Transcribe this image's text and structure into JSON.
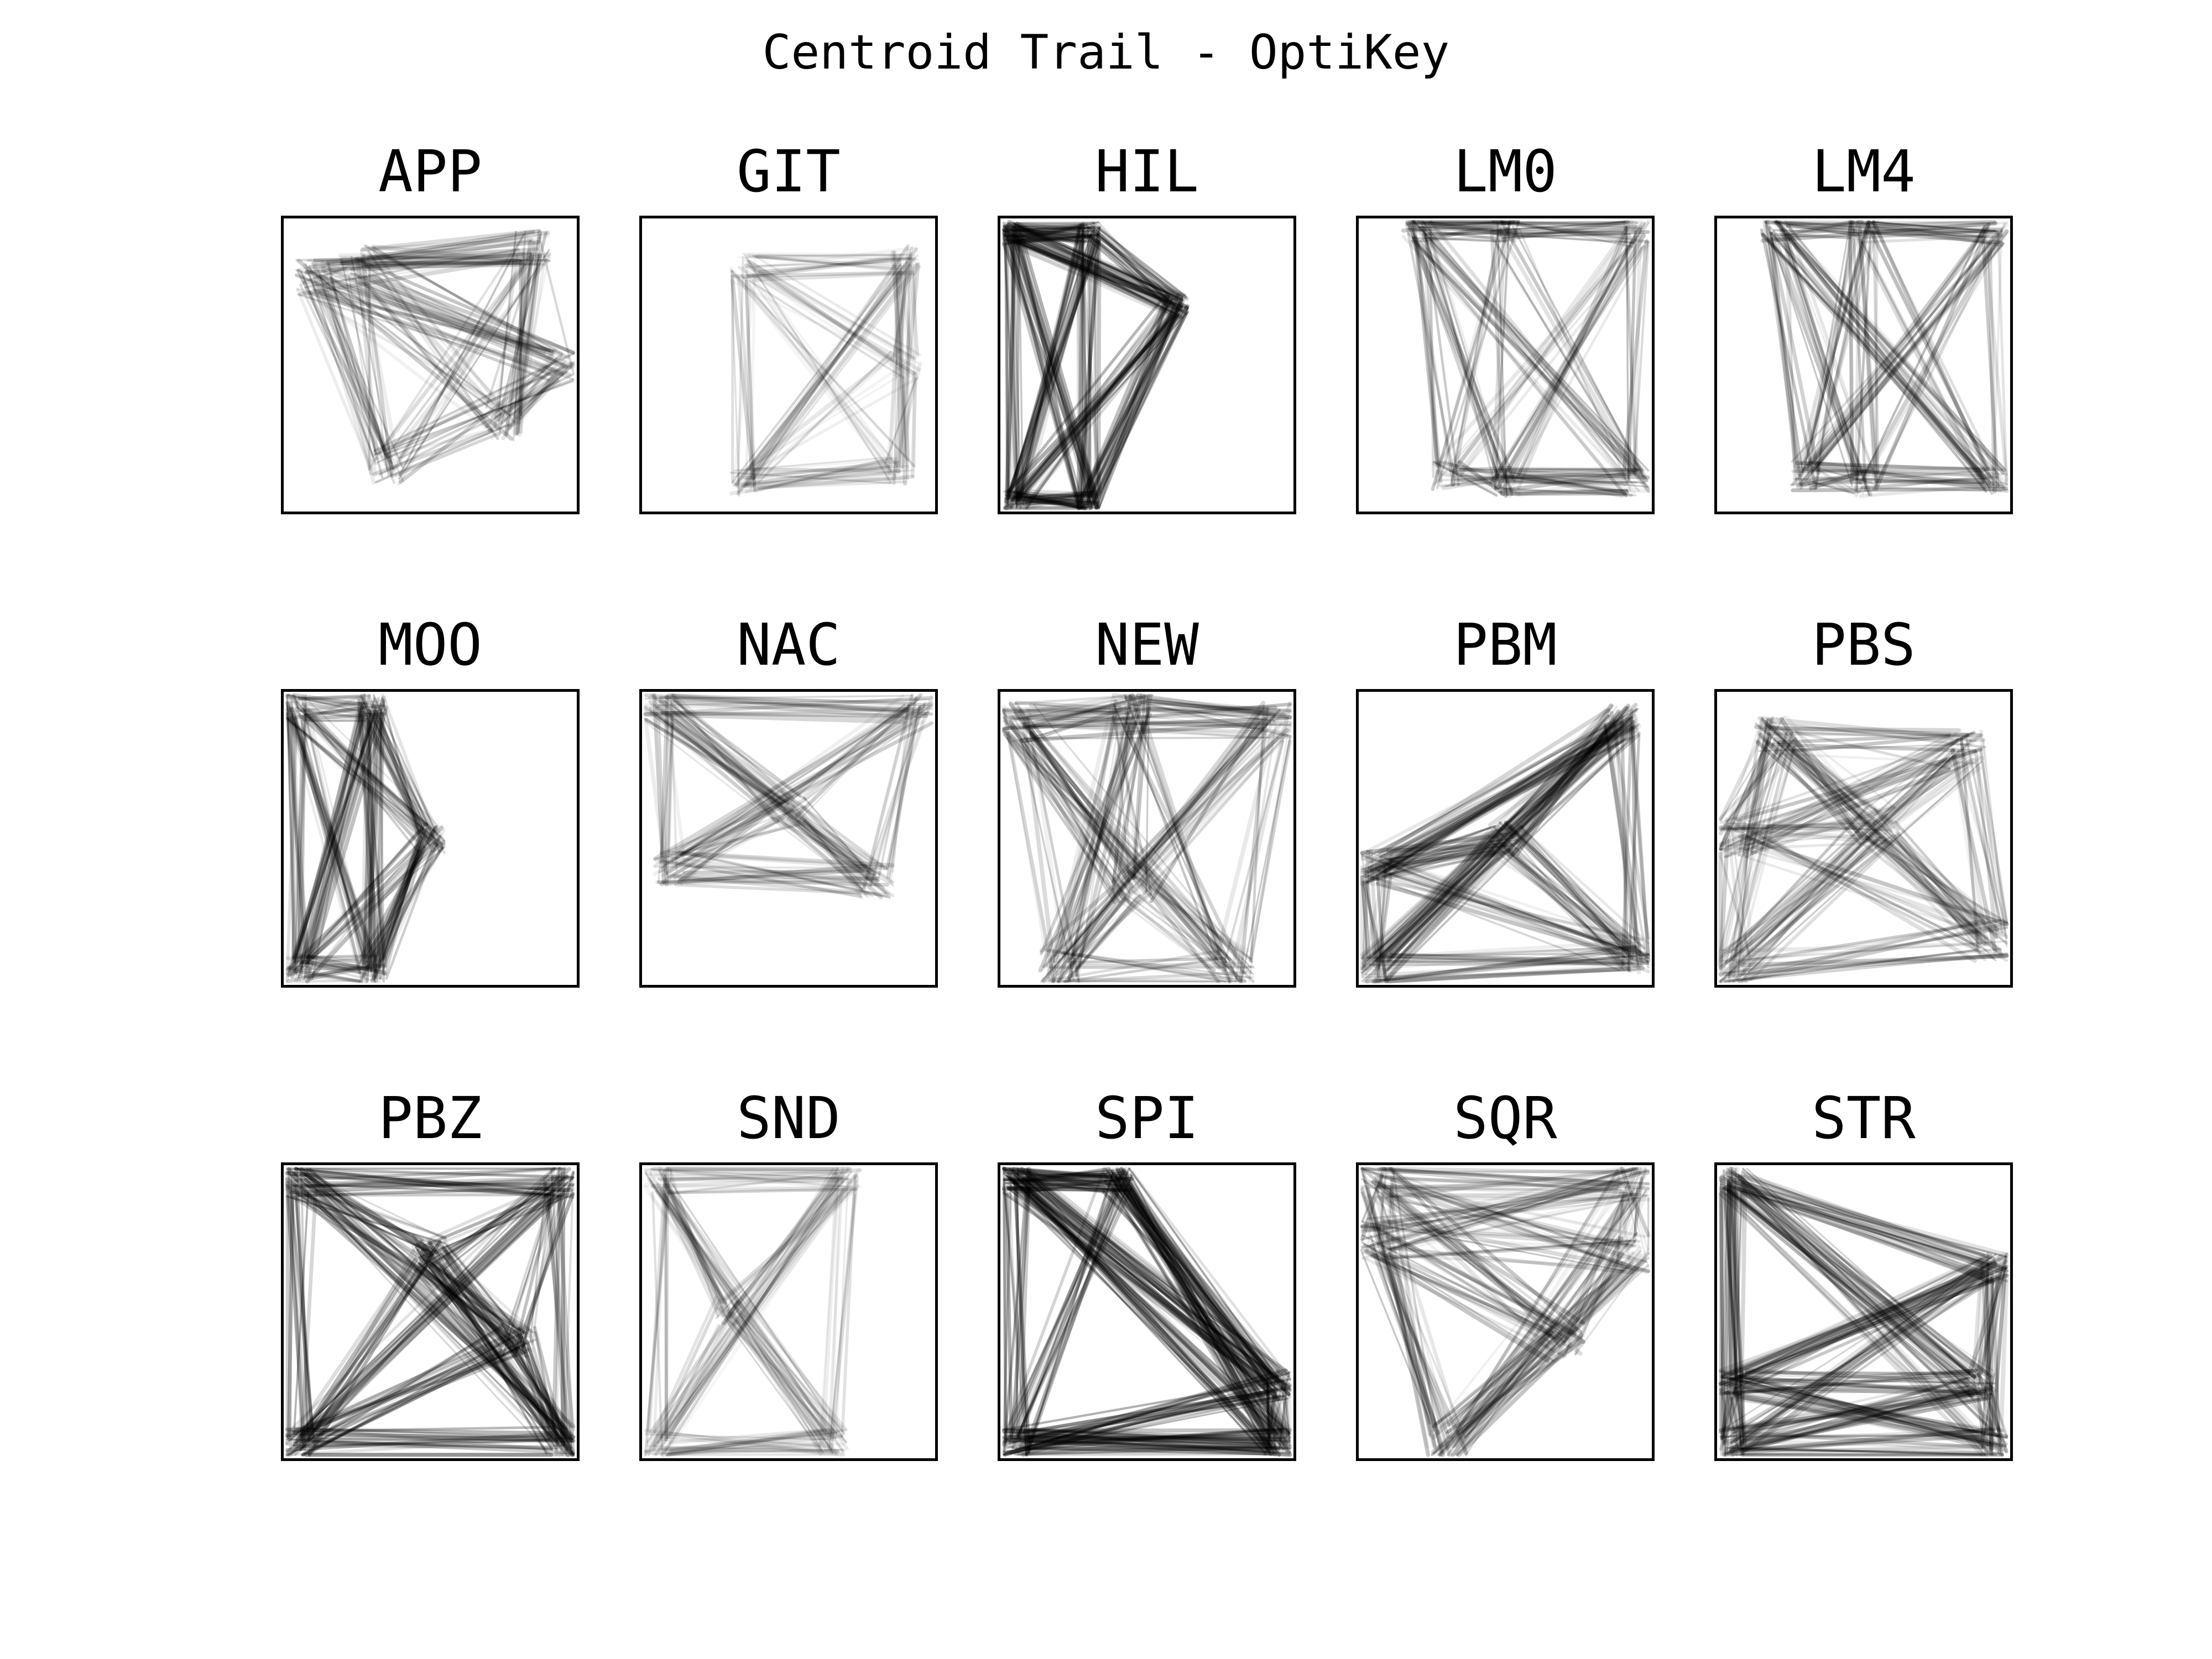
{
  "title": "Centroid Trail - OptiKey",
  "chart_data": {
    "type": "line",
    "title": "Centroid Trail - OptiKey",
    "grid": false,
    "layout": "3x5 small multiples",
    "axis": {
      "xlim": [
        0,
        1
      ],
      "ylim": [
        0,
        1
      ],
      "ticks": "none"
    },
    "stroke_color": "#000000",
    "panels": [
      {
        "name": "APP",
        "anchors": [
          [
            0.25,
            0.15
          ],
          [
            0.85,
            0.1
          ],
          [
            0.75,
            0.7
          ],
          [
            0.35,
            0.85
          ],
          [
            0.1,
            0.2
          ],
          [
            0.95,
            0.5
          ]
        ],
        "count": 160,
        "opacity": 0.14,
        "spread": 0.06
      },
      {
        "name": "GIT",
        "anchors": [
          [
            0.35,
            0.17
          ],
          [
            0.9,
            0.14
          ],
          [
            0.88,
            0.86
          ],
          [
            0.35,
            0.9
          ],
          [
            0.9,
            0.5
          ]
        ],
        "count": 110,
        "opacity": 0.1,
        "spread": 0.05
      },
      {
        "name": "HIL",
        "anchors": [
          [
            0.03,
            0.05
          ],
          [
            0.3,
            0.05
          ],
          [
            0.05,
            0.97
          ],
          [
            0.3,
            0.97
          ],
          [
            0.6,
            0.3
          ]
        ],
        "count": 230,
        "opacity": 0.2,
        "spread": 0.04
      },
      {
        "name": "LM0",
        "anchors": [
          [
            0.2,
            0.03
          ],
          [
            0.5,
            0.03
          ],
          [
            0.95,
            0.05
          ],
          [
            0.3,
            0.88
          ],
          [
            0.5,
            0.9
          ],
          [
            0.95,
            0.9
          ]
        ],
        "count": 150,
        "opacity": 0.16,
        "spread": 0.05
      },
      {
        "name": "LM4",
        "anchors": [
          [
            0.2,
            0.03
          ],
          [
            0.5,
            0.03
          ],
          [
            0.95,
            0.05
          ],
          [
            0.3,
            0.88
          ],
          [
            0.5,
            0.9
          ],
          [
            0.95,
            0.9
          ]
        ],
        "count": 150,
        "opacity": 0.16,
        "spread": 0.05
      },
      {
        "name": "MOO",
        "anchors": [
          [
            0.04,
            0.05
          ],
          [
            0.3,
            0.05
          ],
          [
            0.05,
            0.95
          ],
          [
            0.3,
            0.95
          ],
          [
            0.5,
            0.5
          ]
        ],
        "count": 200,
        "opacity": 0.16,
        "spread": 0.05
      },
      {
        "name": "NAC",
        "anchors": [
          [
            0.05,
            0.05
          ],
          [
            0.95,
            0.05
          ],
          [
            0.1,
            0.6
          ],
          [
            0.8,
            0.65
          ],
          [
            0.5,
            0.4
          ]
        ],
        "count": 140,
        "opacity": 0.12,
        "spread": 0.06
      },
      {
        "name": "NEW",
        "anchors": [
          [
            0.05,
            0.1
          ],
          [
            0.45,
            0.05
          ],
          [
            0.95,
            0.1
          ],
          [
            0.2,
            0.95
          ],
          [
            0.8,
            0.95
          ],
          [
            0.45,
            0.65
          ]
        ],
        "count": 190,
        "opacity": 0.15,
        "spread": 0.07
      },
      {
        "name": "PBM",
        "anchors": [
          [
            0.05,
            0.6
          ],
          [
            0.9,
            0.1
          ],
          [
            0.05,
            0.95
          ],
          [
            0.95,
            0.9
          ],
          [
            0.5,
            0.5
          ]
        ],
        "count": 210,
        "opacity": 0.16,
        "spread": 0.06
      },
      {
        "name": "PBS",
        "anchors": [
          [
            0.05,
            0.5
          ],
          [
            0.85,
            0.2
          ],
          [
            0.05,
            0.95
          ],
          [
            0.95,
            0.85
          ],
          [
            0.55,
            0.45
          ],
          [
            0.2,
            0.15
          ]
        ],
        "count": 200,
        "opacity": 0.14,
        "spread": 0.07
      },
      {
        "name": "PBZ",
        "anchors": [
          [
            0.05,
            0.05
          ],
          [
            0.95,
            0.05
          ],
          [
            0.05,
            0.95
          ],
          [
            0.95,
            0.95
          ],
          [
            0.5,
            0.3
          ],
          [
            0.8,
            0.6
          ]
        ],
        "count": 230,
        "opacity": 0.2,
        "spread": 0.06
      },
      {
        "name": "SND",
        "anchors": [
          [
            0.05,
            0.05
          ],
          [
            0.7,
            0.05
          ],
          [
            0.05,
            0.95
          ],
          [
            0.65,
            0.95
          ],
          [
            0.3,
            0.5
          ]
        ],
        "count": 140,
        "opacity": 0.1,
        "spread": 0.05
      },
      {
        "name": "SPI",
        "anchors": [
          [
            0.05,
            0.05
          ],
          [
            0.95,
            0.75
          ],
          [
            0.05,
            0.95
          ],
          [
            0.95,
            0.95
          ],
          [
            0.4,
            0.05
          ]
        ],
        "count": 260,
        "opacity": 0.22,
        "spread": 0.05
      },
      {
        "name": "SQR",
        "anchors": [
          [
            0.05,
            0.05
          ],
          [
            0.95,
            0.05
          ],
          [
            0.05,
            0.25
          ],
          [
            0.95,
            0.3
          ],
          [
            0.7,
            0.6
          ],
          [
            0.3,
            0.95
          ]
        ],
        "count": 200,
        "opacity": 0.14,
        "spread": 0.07
      },
      {
        "name": "STR",
        "anchors": [
          [
            0.05,
            0.05
          ],
          [
            0.95,
            0.35
          ],
          [
            0.05,
            0.75
          ],
          [
            0.95,
            0.95
          ],
          [
            0.05,
            0.95
          ],
          [
            0.9,
            0.75
          ]
        ],
        "count": 240,
        "opacity": 0.18,
        "spread": 0.05
      }
    ]
  }
}
